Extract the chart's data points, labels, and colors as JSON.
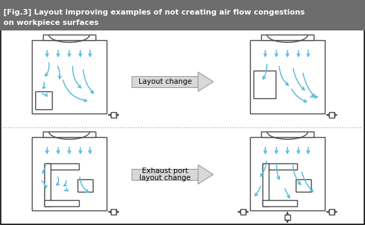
{
  "title_line1": "[Fig.3] Layout improving examples of not creating air flow congestions",
  "title_line2": "on workpiece surfaces",
  "title_bg": "#6d6d6d",
  "title_text_color": "#ffffff",
  "bg_color": "#ffffff",
  "cyan": "#55bbdd",
  "dark": "#444444",
  "layout_change_text": "Layout change",
  "exhaust_text1": "Exhaust port",
  "exhaust_text2": "layout change"
}
